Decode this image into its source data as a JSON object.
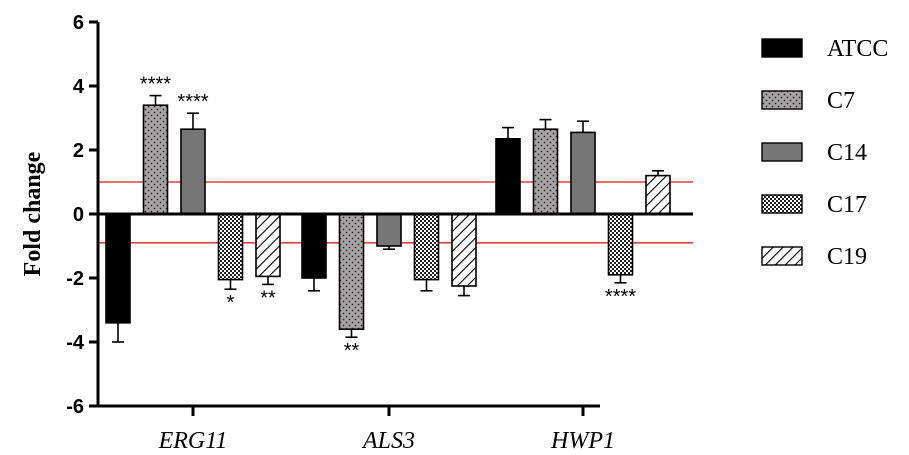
{
  "chart_data": {
    "type": "bar",
    "ylabel": "Fold change",
    "ylim": [
      -6,
      6
    ],
    "yticks": [
      "-6",
      "-4",
      "-2",
      "0",
      "2",
      "4",
      "6"
    ],
    "categories": [
      "ERG11",
      "ALS3",
      "HWP1"
    ],
    "series": [
      {
        "name": "ATCC",
        "pattern": "solid-black",
        "values": [
          -3.4,
          -2.0,
          2.35
        ],
        "errors": [
          0.6,
          0.4,
          0.35
        ],
        "sig": [
          "",
          "",
          ""
        ]
      },
      {
        "name": "C7",
        "pattern": "dots",
        "values": [
          3.4,
          -3.6,
          2.65
        ],
        "errors": [
          0.3,
          0.25,
          0.3
        ],
        "sig": [
          "****",
          "**",
          ""
        ]
      },
      {
        "name": "C14",
        "pattern": "solid-grey",
        "values": [
          2.65,
          -1.0,
          2.55
        ],
        "errors": [
          0.5,
          0.1,
          0.35
        ],
        "sig": [
          "****",
          "",
          ""
        ]
      },
      {
        "name": "C17",
        "pattern": "checker",
        "values": [
          -2.05,
          -2.05,
          -1.9
        ],
        "errors": [
          0.3,
          0.35,
          0.25
        ],
        "sig": [
          "*",
          "",
          "****"
        ]
      },
      {
        "name": "C19",
        "pattern": "hatch",
        "values": [
          -1.95,
          -2.25,
          1.2
        ],
        "errors": [
          0.25,
          0.3,
          0.15
        ],
        "sig": [
          "**",
          "",
          ""
        ]
      }
    ],
    "reference_lines": [
      1,
      -0.9
    ],
    "reference_line_color": "#e8413c",
    "legend_position": "right"
  }
}
